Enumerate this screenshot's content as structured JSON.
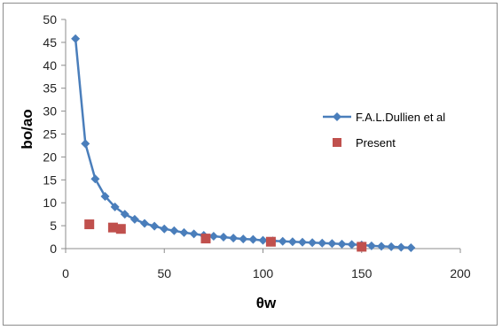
{
  "chart_data": {
    "type": "scatter",
    "title": "",
    "xlabel": "θw",
    "ylabel": "bo/ao",
    "xlim": [
      0,
      200
    ],
    "ylim": [
      0,
      50
    ],
    "x_ticks": [
      0,
      50,
      100,
      150,
      200
    ],
    "y_ticks": [
      0,
      5,
      10,
      15,
      20,
      25,
      30,
      35,
      40,
      45,
      50
    ],
    "grid": false,
    "legend_position": "right",
    "series": [
      {
        "name": "F.A.L.Dullien et al",
        "style": "line-markers",
        "marker": "diamond",
        "color": "#4a7ebb",
        "x": [
          5,
          10,
          15,
          20,
          25,
          30,
          35,
          40,
          45,
          50,
          55,
          60,
          65,
          70,
          75,
          80,
          85,
          90,
          95,
          100,
          105,
          110,
          115,
          120,
          125,
          130,
          135,
          140,
          145,
          150,
          155,
          160,
          165,
          170,
          175
        ],
        "y": [
          45.8,
          22.9,
          15.2,
          11.4,
          9.1,
          7.5,
          6.4,
          5.5,
          4.9,
          4.3,
          3.9,
          3.5,
          3.2,
          2.9,
          2.7,
          2.5,
          2.3,
          2.1,
          2.0,
          1.8,
          1.7,
          1.6,
          1.5,
          1.4,
          1.3,
          1.2,
          1.1,
          1.0,
          0.9,
          0.8,
          0.6,
          0.5,
          0.4,
          0.3,
          0.2
        ]
      },
      {
        "name": "Present",
        "style": "markers",
        "marker": "square",
        "color": "#c0504d",
        "x": [
          12,
          24,
          28,
          71,
          104,
          150
        ],
        "y": [
          5.3,
          4.6,
          4.3,
          2.2,
          1.5,
          0.4
        ]
      }
    ]
  }
}
